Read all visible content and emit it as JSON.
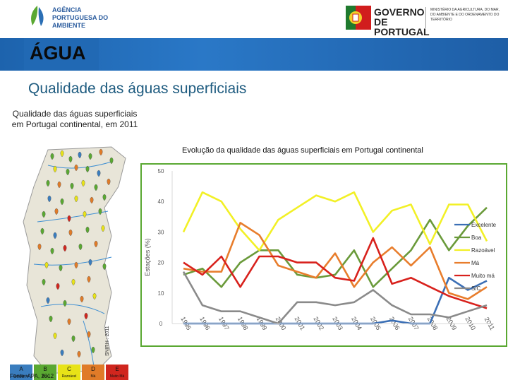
{
  "header": {
    "apa_name": "AGÊNCIA PORTUGUESA DO AMBIENTE",
    "gov_name": "GOVERNO DE PORTUGAL",
    "ministry": "MINISTÉRIO DA AGRICULTURA, DO MAR, DO AMBIENTE E DO ORDENAMENTO DO TERRITÓRIO"
  },
  "banner": {
    "title": "ÁGUA"
  },
  "section": {
    "title": "Qualidade das águas superficiais"
  },
  "map": {
    "caption": "Qualidade das águas superficiais em Portugal continental, em 2011",
    "side_label": "SNIRH : 2011",
    "source": "Fonte: APA, 2012",
    "legend": [
      {
        "code": "A",
        "label": "Excelente",
        "color": "#3a7dbe"
      },
      {
        "code": "B",
        "label": "Boa",
        "color": "#5aa832"
      },
      {
        "code": "C",
        "label": "Razoável",
        "color": "#e8e317"
      },
      {
        "code": "D",
        "label": "Má",
        "color": "#e07b28"
      },
      {
        "code": "E",
        "label": "Muito Má",
        "color": "#d0261e"
      }
    ]
  },
  "chart_data": {
    "type": "line",
    "title": "Evolução da qualidade das águas superficiais em Portugal continental",
    "ylabel": "Estações (%)",
    "xlabel": "",
    "ylim": [
      0,
      50
    ],
    "yticks": [
      "0",
      "10",
      "20",
      "30",
      "40",
      "50"
    ],
    "categories": [
      "1995",
      "1996",
      "1997",
      "1998",
      "1999",
      "2000",
      "2001",
      "2002",
      "2003",
      "2004",
      "2005",
      "2006",
      "2007",
      "2008",
      "2009",
      "2010",
      "2011"
    ],
    "grid": false,
    "legend_position": "right",
    "series": [
      {
        "name": "Excelente",
        "color": "#3b6fb5",
        "values": [
          0,
          0,
          0,
          0,
          0,
          0,
          0,
          0,
          0,
          0,
          0,
          1,
          0,
          0,
          15,
          11,
          14
        ]
      },
      {
        "name": "Boa",
        "color": "#6a9a3a",
        "values": [
          16,
          18,
          12,
          20,
          24,
          24,
          16,
          15,
          16,
          24,
          12,
          18,
          24,
          34,
          24,
          32,
          38
        ]
      },
      {
        "name": "Razoável",
        "color": "#f2f026",
        "values": [
          30,
          43,
          40,
          31,
          24,
          34,
          38,
          42,
          40,
          43,
          30,
          37,
          39,
          26,
          39,
          39,
          27
        ]
      },
      {
        "name": "Má",
        "color": "#e87d2c",
        "values": [
          18,
          17,
          17,
          33,
          29,
          19,
          17,
          15,
          23,
          12,
          20,
          25,
          19,
          25,
          10,
          8,
          12
        ]
      },
      {
        "name": "Muito má",
        "color": "#d8211c",
        "values": [
          20,
          16,
          22,
          12,
          22,
          22,
          20,
          20,
          15,
          14,
          28,
          13,
          15,
          12,
          9,
          7,
          5
        ]
      },
      {
        "name": "S/C",
        "color": "#8a8a8a",
        "values": [
          17,
          6,
          4,
          4,
          2,
          0,
          7,
          7,
          6,
          7,
          11,
          6,
          3,
          3,
          2,
          4,
          6
        ]
      }
    ]
  }
}
